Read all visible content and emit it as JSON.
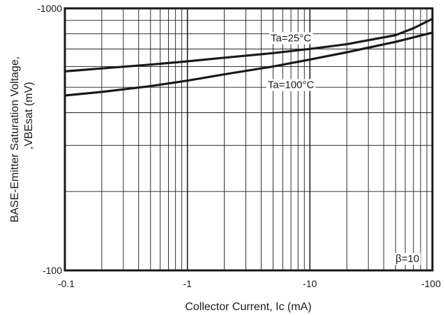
{
  "chart_data": {
    "type": "line",
    "xscale": "log",
    "yscale": "log",
    "xlim": [
      -0.1,
      -100
    ],
    "ylim": [
      -100,
      -1000
    ],
    "xticks": [
      "-0.1",
      "-1",
      "-10",
      "-100"
    ],
    "yticks": [
      "-1000",
      "-100"
    ],
    "xlabel": "Collector Current, Ic (mA)",
    "ylabel_line1": "BASE-Emitter Saturation Voltage,",
    "ylabel_line2": ",VBEsat  (mV)",
    "grid": true,
    "annotation": "β=10",
    "series": [
      {
        "name": "Ta=25°C",
        "x": [
          -0.1,
          -0.2,
          -0.5,
          -1,
          -2,
          -5,
          -10,
          -20,
          -50,
          -70,
          -100
        ],
        "y": [
          -575,
          -590,
          -610,
          -628,
          -648,
          -675,
          -700,
          -730,
          -790,
          -840,
          -912
        ]
      },
      {
        "name": "Ta=100°C",
        "x": [
          -0.1,
          -0.2,
          -0.5,
          -1,
          -2,
          -5,
          -10,
          -20,
          -50,
          -100
        ],
        "y": [
          -465,
          -480,
          -505,
          -530,
          -560,
          -600,
          -638,
          -680,
          -745,
          -808
        ]
      }
    ]
  }
}
